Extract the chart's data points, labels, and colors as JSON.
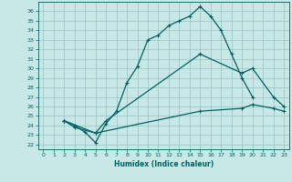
{
  "xlabel": "Humidex (Indice chaleur)",
  "bg_color": "#c8e8e8",
  "grid_color": "#a0c8c8",
  "line_color": "#006060",
  "xlim": [
    -0.5,
    23.5
  ],
  "ylim": [
    21.5,
    37.0
  ],
  "xticks": [
    0,
    1,
    2,
    3,
    4,
    5,
    6,
    7,
    8,
    9,
    10,
    11,
    12,
    13,
    14,
    15,
    16,
    17,
    18,
    19,
    20,
    21,
    22,
    23
  ],
  "yticks": [
    22,
    23,
    24,
    25,
    26,
    27,
    28,
    29,
    30,
    31,
    32,
    33,
    34,
    35,
    36
  ],
  "line1_x": [
    2,
    3,
    4,
    5,
    6,
    7,
    8,
    9,
    10,
    11,
    12,
    13,
    14,
    15,
    16,
    17,
    18,
    19,
    20
  ],
  "line1_y": [
    24.5,
    24.0,
    23.3,
    22.2,
    24.2,
    25.5,
    28.5,
    30.2,
    33.0,
    33.5,
    34.5,
    35.0,
    35.5,
    36.5,
    35.5,
    34.0,
    31.5,
    29.0,
    27.0
  ],
  "line2_x": [
    2,
    3,
    5,
    6,
    15,
    19,
    20,
    22,
    23
  ],
  "line2_y": [
    24.5,
    23.8,
    23.2,
    24.5,
    31.5,
    29.5,
    30.0,
    27.0,
    26.0
  ],
  "line3_x": [
    2,
    5,
    15,
    19,
    20,
    22,
    23
  ],
  "line3_y": [
    24.5,
    23.2,
    25.5,
    25.8,
    26.2,
    25.8,
    25.5
  ]
}
